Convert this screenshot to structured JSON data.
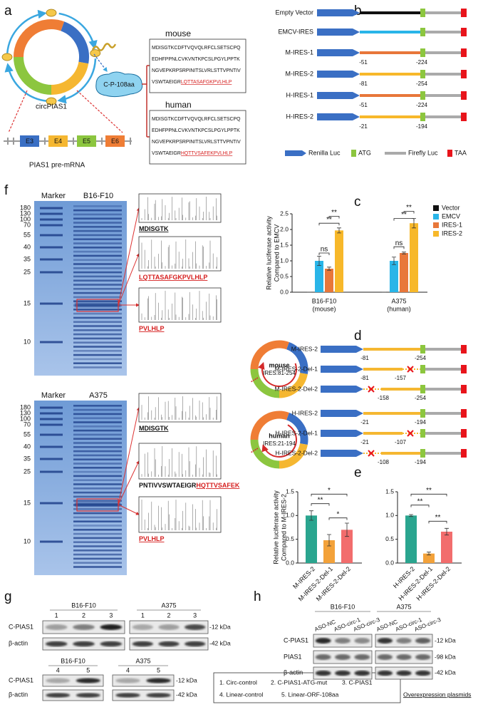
{
  "labels": [
    "a",
    "b",
    "c",
    "d",
    "e",
    "f",
    "g",
    "h"
  ],
  "a": {
    "circ": "circPIAS1",
    "protein": "C-P-108aa",
    "mouse": {
      "title": "mouse",
      "lines": [
        "MDISGTKCDFTVQVQLRFCLSETSCPQ",
        "EDHFPPNLCVKVNTKPCSLPGYLPPTK",
        "NGVEPKRPSRPINITSLVRLSTTVPNTIV"
      ],
      "last": "VSWTAEIGR",
      "highlight": "LQTTASAFGKPVLHLP"
    },
    "human": {
      "title": "human",
      "lines": [
        "MDISGTKCDFTVQVQLRFCLSETSCPQ",
        "EDHFPPNLCVKVNTKPCSLPGYLPPTK",
        "NGVEPKRPSRPINITSLVRLSTTVPNTIV"
      ],
      "last": "VSWTAEIGR",
      "highlight": "HQTTVSAFEKPVLHLP"
    },
    "exons": [
      "E3",
      "E4",
      "E5",
      "E6"
    ],
    "premrna": "PIAS1 pre-mRNA"
  },
  "b": {
    "constructs": [
      {
        "name": "Empty Vector",
        "color": "#111111"
      },
      {
        "name": "EMCV-IRES",
        "color": "#29b5e8"
      },
      {
        "name": "M-IRES-1",
        "color": "#e8773a",
        "start": -51,
        "end": -224
      },
      {
        "name": "M-IRES-2",
        "color": "#f7b82a",
        "start": -81,
        "end": -254
      },
      {
        "name": "H-IRES-1",
        "color": "#e8773a",
        "start": -51,
        "end": -224
      },
      {
        "name": "H-IRES-2",
        "color": "#f7b82a",
        "start": -21,
        "end": -194
      }
    ],
    "legend": [
      "Renilla Luc",
      "ATG",
      "Firefly Luc",
      "TAA"
    ]
  },
  "d": {
    "circles": [
      {
        "name": "mouse",
        "range": "IRES:81-254"
      },
      {
        "name": "human",
        "range": "IRES:21-194"
      }
    ],
    "constructs": [
      {
        "name": "M-IRES-2",
        "start": -81,
        "end": -254
      },
      {
        "name": "M-IRES-2-Del-1",
        "start": -81,
        "end": -157
      },
      {
        "name": "M-IRES-2-Del-2",
        "start": -158,
        "end": -254
      },
      {
        "name": "H-IRES-2",
        "start": -21,
        "end": -194
      },
      {
        "name": "H-IRES-2-Del-1",
        "start": -21,
        "end": -107
      },
      {
        "name": "H-IRES-2-Del-2",
        "start": -108,
        "end": -194
      }
    ]
  },
  "f": {
    "gels": [
      {
        "lanes": [
          "Marker",
          "B16-F10"
        ],
        "ladder": [
          180,
          130,
          100,
          70,
          55,
          40,
          35,
          25,
          15,
          10
        ],
        "peptides": [
          [
            {
              "text": "MDISGTK",
              "color": "#111111",
              "underline": true
            }
          ],
          [
            {
              "text": "LQTTASAFGKPVLHLP",
              "color": "#d62020",
              "underline": true
            }
          ],
          [
            {
              "text": "PVLHLP",
              "color": "#d62020",
              "underline": true
            }
          ]
        ]
      },
      {
        "lanes": [
          "Marker",
          "A375"
        ],
        "ladder": [
          180,
          130,
          100,
          70,
          55,
          40,
          35,
          25,
          15,
          10
        ],
        "peptides": [
          [
            {
              "text": "MDISGTK",
              "color": "#111111",
              "underline": true
            }
          ],
          [
            {
              "text": "PNTIVVSWTAEIGR",
              "color": "#111111",
              "underline": false
            },
            {
              "text": "HQTTVSAFEK",
              "color": "#d62020",
              "underline": true
            }
          ],
          [
            {
              "text": "PVLHLP",
              "color": "#d62020",
              "underline": true
            }
          ]
        ]
      }
    ]
  },
  "g": {
    "top": [
      {
        "cell": "B16-F10",
        "lanes": [
          1,
          2,
          3
        ]
      },
      {
        "cell": "A375",
        "lanes": [
          1,
          2,
          3
        ]
      }
    ],
    "bottom": [
      {
        "cell": "B16-F10",
        "lanes": [
          4,
          5
        ]
      },
      {
        "cell": "A375",
        "lanes": [
          4,
          5
        ]
      }
    ],
    "rows": [
      "C-PIAS1",
      "β-actin"
    ],
    "sizes": [
      "-12 kDa",
      "-42 kDa"
    ],
    "legend": {
      "items": [
        "1. Circ-control",
        "2. C-PIAS1-ATG-mut",
        "3. C-PIAS1",
        "4. Linear-control",
        "5. Linear-ORF-108aa"
      ],
      "note": "Overexpression plasmids"
    }
  },
  "h": {
    "groups": [
      {
        "cell": "B16-F10",
        "lanes": [
          "ASO-NC",
          "ASO-circ-1",
          "ASO-circ-3"
        ]
      },
      {
        "cell": "A375",
        "lanes": [
          "ASO-NC",
          "ASO-circ-1",
          "ASO-circ-3"
        ]
      }
    ],
    "rows": [
      "C-PIAS1",
      "PIAS1",
      "β-actin"
    ],
    "sizes": [
      "-12 kDa",
      "-98 kDa",
      "-42 kDa"
    ]
  },
  "chart_data": [
    {
      "type": "bar",
      "ylabel": [
        "Relative luciferase activity",
        "Compared to EMCV"
      ],
      "categories": [
        [
          "B16-F10",
          "(mouse)"
        ],
        [
          "A375",
          "(human)"
        ]
      ],
      "series": [
        {
          "name": "Vector",
          "color": "#111111",
          "values": [
            0,
            0
          ],
          "errors": [
            0,
            0
          ]
        },
        {
          "name": "EMCV",
          "color": "#29b5e8",
          "values": [
            1.0,
            1.0
          ],
          "errors": [
            0.15,
            0.12
          ]
        },
        {
          "name": "IRES-1",
          "color": "#e8773a",
          "values": [
            0.75,
            1.25
          ],
          "errors": [
            0.05,
            0.03
          ]
        },
        {
          "name": "IRES-2",
          "color": "#f7b82a",
          "values": [
            1.97,
            2.2
          ],
          "errors": [
            0.08,
            0.15
          ]
        }
      ],
      "ylim": [
        0,
        2.5
      ],
      "yticks": [
        {
          "value": 0,
          "label": "0.0"
        },
        0.5,
        {
          "value": 1,
          "label": "1.0"
        },
        1.5,
        {
          "value": 2,
          "label": "2.0"
        },
        2.5
      ],
      "annotations": [
        "ns",
        "**",
        "**",
        "ns",
        "**",
        "**"
      ]
    },
    {
      "type": "bar",
      "ylabel": [
        "Relative luciferase activity",
        "Compared to M-IRES-2"
      ],
      "categories": [
        "M-IRES-2",
        "M-IRES-2-Del-1",
        "M-IRES-2-Del-2"
      ],
      "values": [
        1.0,
        0.48,
        0.7
      ],
      "errors": [
        0.1,
        0.12,
        0.14
      ],
      "colors": [
        "#2aa58f",
        "#f3a23a",
        "#f26d6d"
      ],
      "ylim": [
        0,
        1.5
      ],
      "yticks": [
        {
          "value": 0,
          "label": "0.0"
        },
        0.5,
        {
          "value": 1,
          "label": "1.0"
        },
        1.5
      ],
      "annotations": [
        "*",
        "**",
        "*"
      ]
    },
    {
      "type": "bar",
      "categories": [
        "H-IRES-2",
        "H-IRES-2-Del-1",
        "H-IRES-2-Del-2"
      ],
      "values": [
        1.0,
        0.2,
        0.66
      ],
      "errors": [
        0.02,
        0.03,
        0.07
      ],
      "colors": [
        "#2aa58f",
        "#f3a23a",
        "#f26d6d"
      ],
      "ylim": [
        0,
        1.5
      ],
      "yticks": [
        {
          "value": 0,
          "label": "0.0"
        },
        0.5,
        {
          "value": 1,
          "label": "1.0"
        },
        1.5
      ],
      "annotations": [
        "**",
        "**",
        "**"
      ]
    }
  ]
}
